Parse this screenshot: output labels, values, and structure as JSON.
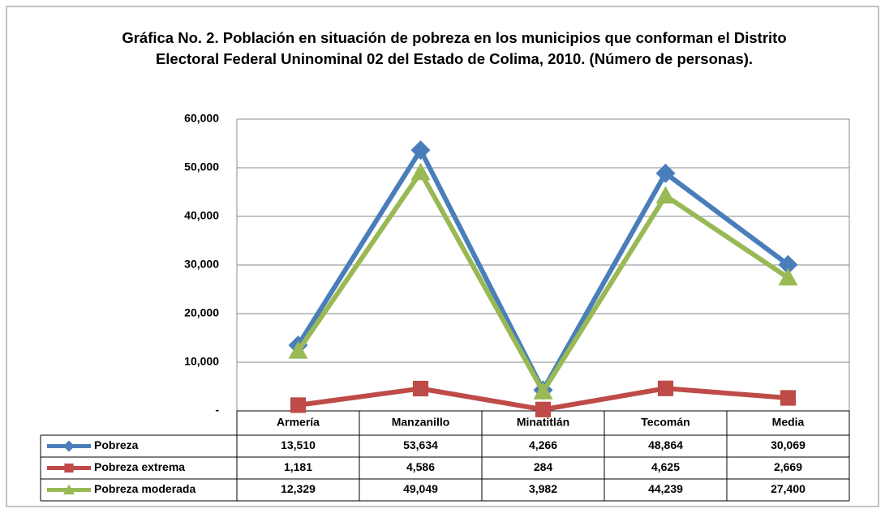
{
  "chart_data": {
    "type": "line",
    "title": "Gráfica No. 2. Población en situación de pobreza en los municipios que conforman el Distrito Electoral Federal Uninominal 02 del Estado de Colima, 2010. (Número de personas).",
    "categories": [
      "Armería",
      "Manzanillo",
      "Minatitlán",
      "Tecomán",
      "Media"
    ],
    "series": [
      {
        "name": "Pobreza",
        "color": "#4a7ebb",
        "marker": "diamond",
        "values": [
          13510,
          53634,
          4266,
          48864,
          30069
        ],
        "value_labels": [
          "13,510",
          "53,634",
          "4,266",
          "48,864",
          "30,069"
        ]
      },
      {
        "name": "Pobreza extrema",
        "color": "#be4b48",
        "marker": "square",
        "values": [
          1181,
          4586,
          284,
          4625,
          2669
        ],
        "value_labels": [
          "1,181",
          "4,586",
          "284",
          "4,625",
          "2,669"
        ]
      },
      {
        "name": "Pobreza moderada",
        "color": "#98b954",
        "marker": "triangle",
        "values": [
          12329,
          49049,
          3982,
          44239,
          27400
        ],
        "value_labels": [
          "12,329",
          "49,049",
          "3,982",
          "44,239",
          "27,400"
        ]
      }
    ],
    "ylim": [
      0,
      60000
    ],
    "yticks": [
      {
        "value": 0,
        "label": "-"
      },
      {
        "value": 10000,
        "label": "10,000"
      },
      {
        "value": 20000,
        "label": "20,000"
      },
      {
        "value": 30000,
        "label": "30,000"
      },
      {
        "value": 40000,
        "label": "40,000"
      },
      {
        "value": 50000,
        "label": "50,000"
      },
      {
        "value": 60000,
        "label": "60,000"
      }
    ],
    "grid": true
  }
}
